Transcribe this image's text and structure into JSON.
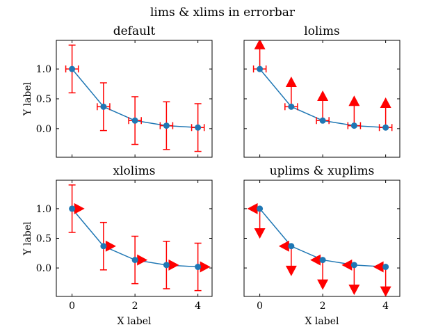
{
  "figure": {
    "suptitle": "lims & xlims in errorbar",
    "colors": {
      "line": "#1f77b4",
      "error": "#ff0000",
      "axes": "#000000"
    }
  },
  "chart_data": [
    {
      "type": "line",
      "title": "default",
      "xlabel": "",
      "ylabel": "Y label",
      "x": [
        0,
        1,
        2,
        3,
        4
      ],
      "y": [
        1.0,
        0.3679,
        0.1353,
        0.0498,
        0.0183
      ],
      "yerr": 0.4,
      "xerr": 0.2,
      "xlim": [
        -0.5,
        4.45
      ],
      "ylim": [
        -0.48,
        1.48
      ],
      "xticks": [
        0,
        2,
        4
      ],
      "yticks": [
        1.0,
        0.5,
        0.0
      ],
      "xtick_labels": [
        "",
        "",
        ""
      ],
      "ytick_labels": [
        "1.0",
        "0.5",
        "0.0"
      ],
      "lolims": false,
      "uplims": false,
      "xlolims": false,
      "xuplims": false
    },
    {
      "type": "line",
      "title": "lolims",
      "xlabel": "",
      "ylabel": "",
      "x": [
        0,
        1,
        2,
        3,
        4
      ],
      "y": [
        1.0,
        0.3679,
        0.1353,
        0.0498,
        0.0183
      ],
      "yerr": 0.4,
      "xerr": 0.2,
      "xlim": [
        -0.5,
        4.45
      ],
      "ylim": [
        -0.48,
        1.48
      ],
      "xticks": [
        0,
        2,
        4
      ],
      "yticks": [
        1.0,
        0.5,
        0.0
      ],
      "xtick_labels": [
        "",
        "",
        ""
      ],
      "ytick_labels": [
        "",
        "",
        ""
      ],
      "lolims": true,
      "uplims": false,
      "xlolims": false,
      "xuplims": false
    },
    {
      "type": "line",
      "title": "xlolims",
      "xlabel": "X label",
      "ylabel": "Y label",
      "x": [
        0,
        1,
        2,
        3,
        4
      ],
      "y": [
        1.0,
        0.3679,
        0.1353,
        0.0498,
        0.0183
      ],
      "yerr": 0.4,
      "xerr": 0.2,
      "xlim": [
        -0.5,
        4.45
      ],
      "ylim": [
        -0.48,
        1.48
      ],
      "xticks": [
        0,
        2,
        4
      ],
      "yticks": [
        1.0,
        0.5,
        0.0
      ],
      "xtick_labels": [
        "0",
        "2",
        "4"
      ],
      "ytick_labels": [
        "1.0",
        "0.5",
        "0.0"
      ],
      "lolims": false,
      "uplims": false,
      "xlolims": true,
      "xuplims": false
    },
    {
      "type": "line",
      "title": "uplims & xuplims",
      "xlabel": "X label",
      "ylabel": "",
      "x": [
        0,
        1,
        2,
        3,
        4
      ],
      "y": [
        1.0,
        0.3679,
        0.1353,
        0.0498,
        0.0183
      ],
      "yerr": 0.4,
      "xerr": 0.2,
      "xlim": [
        -0.5,
        4.45
      ],
      "ylim": [
        -0.48,
        1.48
      ],
      "xticks": [
        0,
        2,
        4
      ],
      "yticks": [
        1.0,
        0.5,
        0.0
      ],
      "xtick_labels": [
        "0",
        "2",
        "4"
      ],
      "ytick_labels": [
        "",
        "",
        ""
      ],
      "lolims": false,
      "uplims": true,
      "xlolims": false,
      "xuplims": true
    }
  ]
}
